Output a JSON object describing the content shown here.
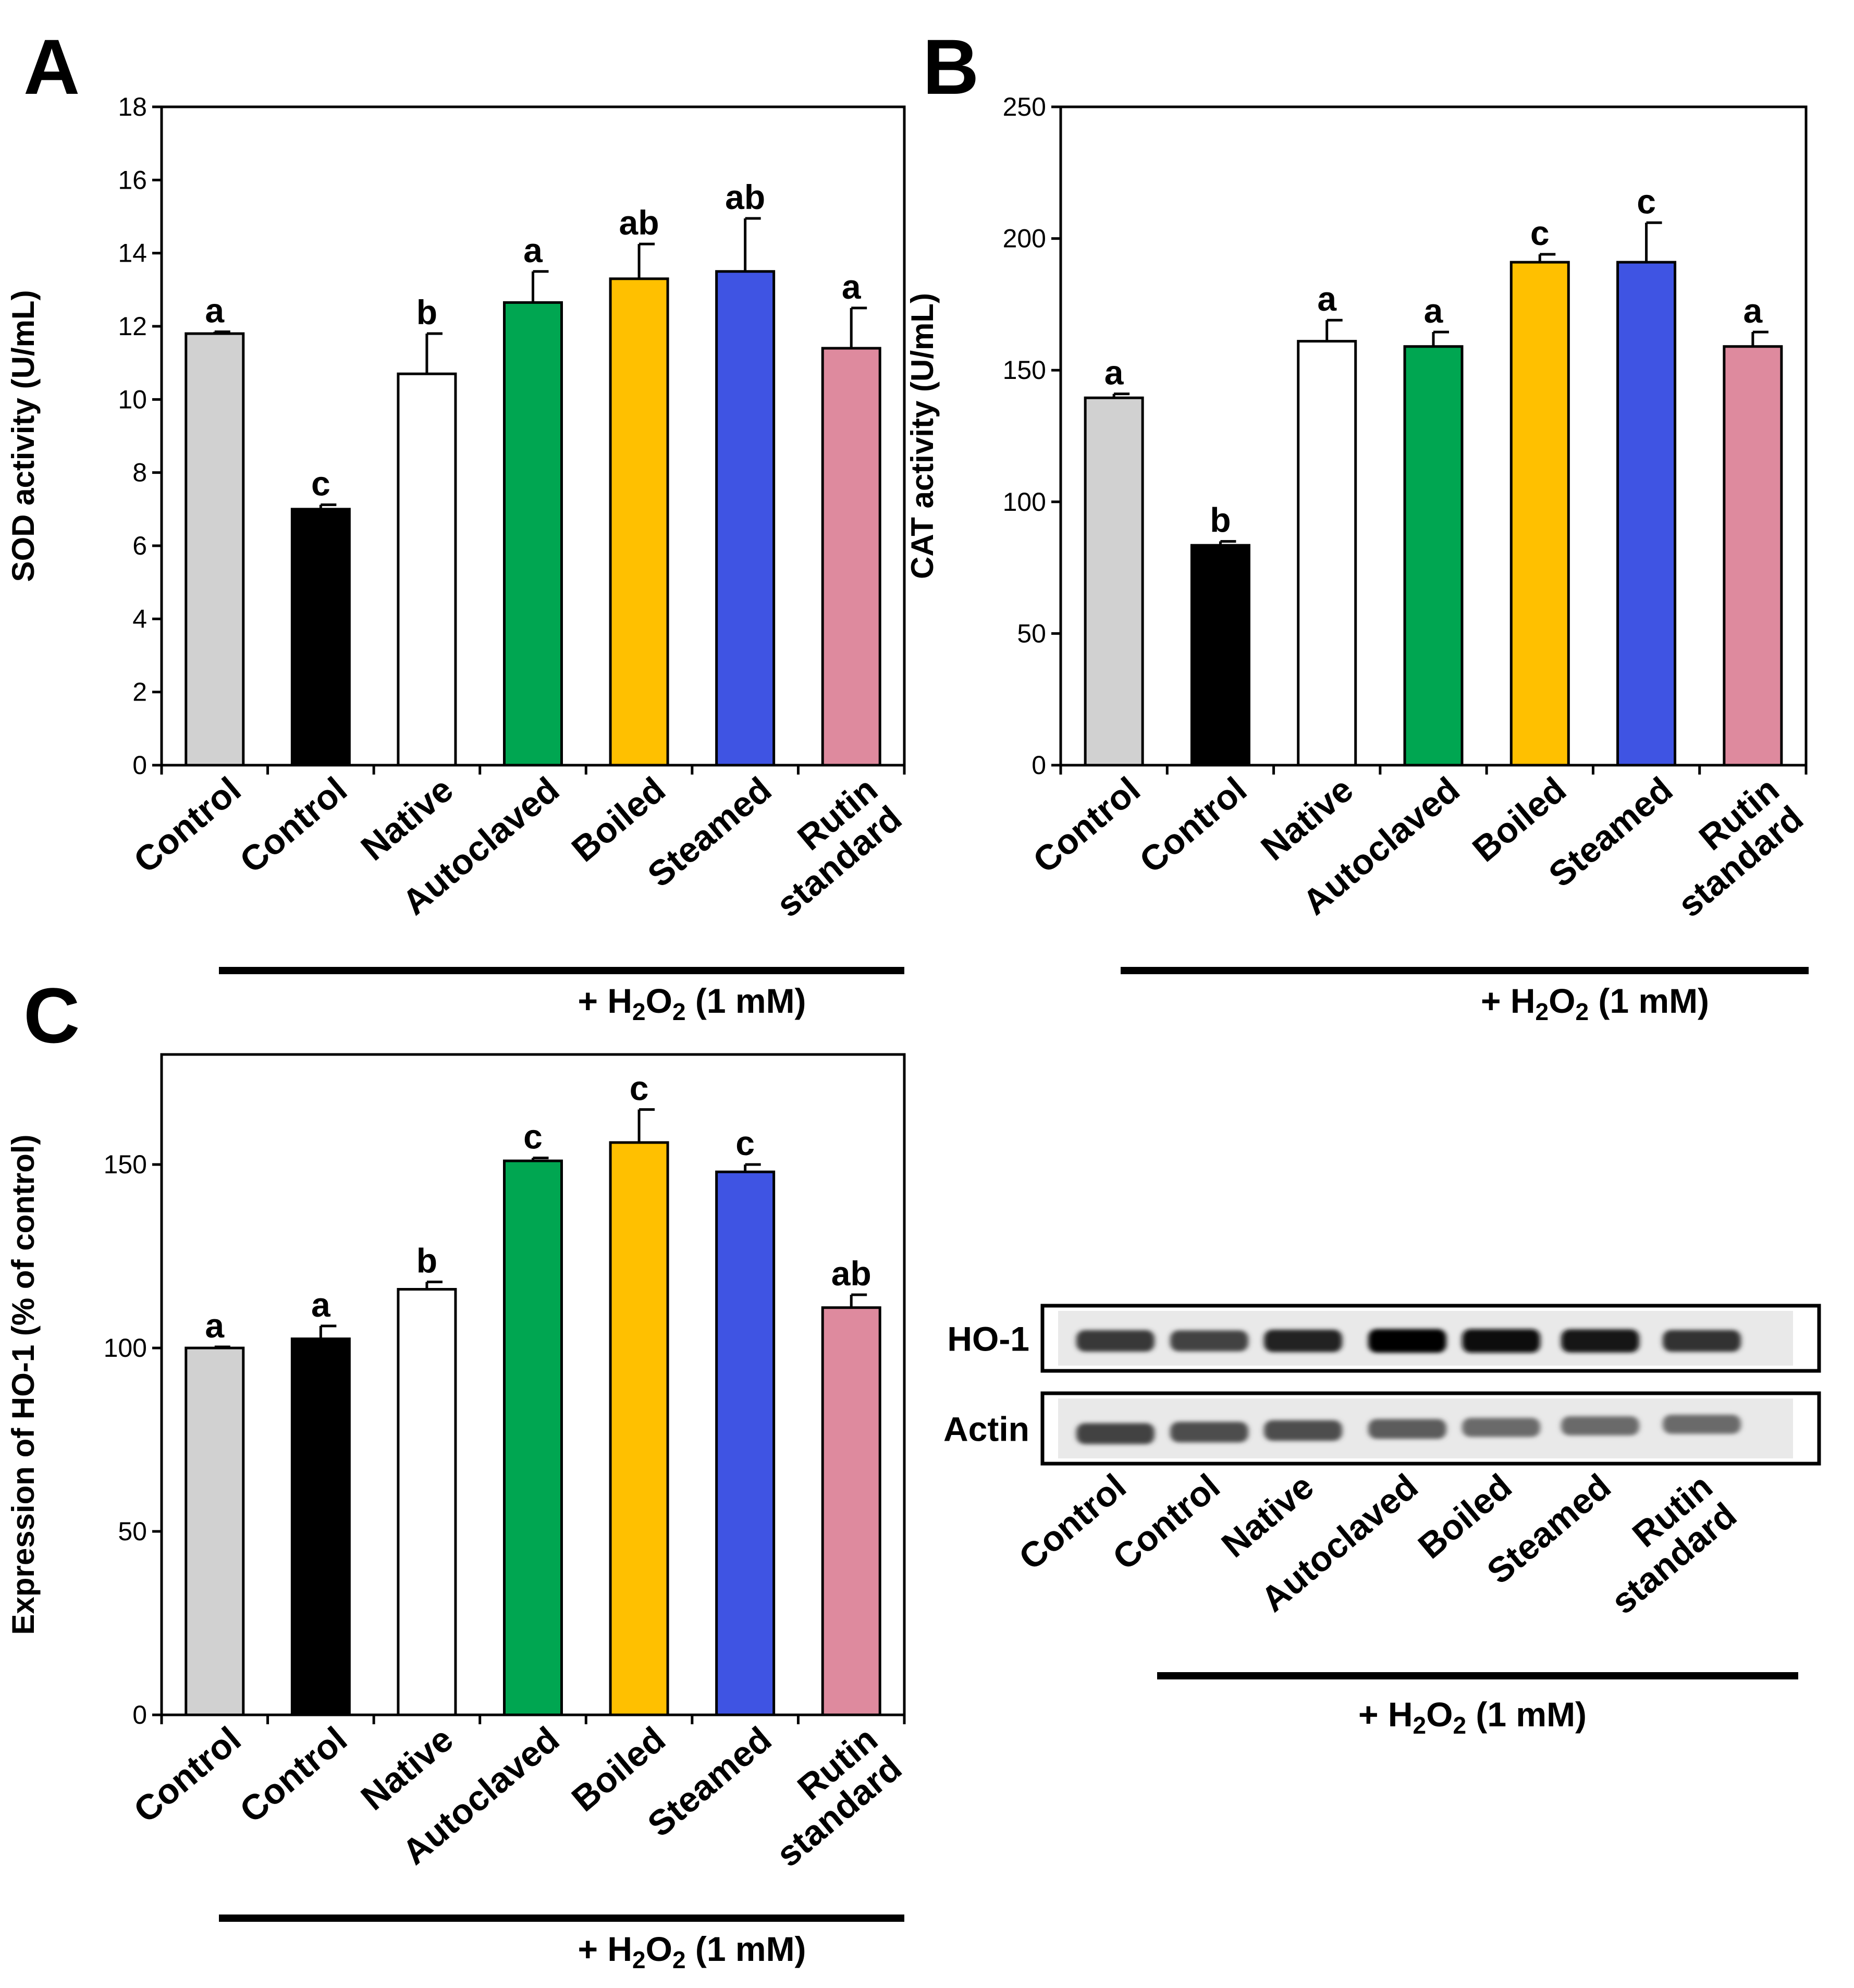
{
  "colors": [
    "#d1d1d1",
    "#000000",
    "#ffffff",
    "#00a651",
    "#ffc000",
    "#3f54e3",
    "#de8a9e"
  ],
  "chart_data": [
    {
      "panel": "A",
      "type": "bar",
      "ylabel": "SOD activity (U/mL)",
      "ylim": [
        0,
        18
      ],
      "yticks": [
        0,
        2,
        4,
        6,
        8,
        10,
        12,
        14,
        16,
        18
      ],
      "categories": [
        "Control",
        "Control",
        "Native",
        "Autoclaved",
        "Boiled",
        "Steamed",
        "Rutin standard"
      ],
      "category_lines": [
        [
          "Control"
        ],
        [
          "Control"
        ],
        [
          "Native"
        ],
        [
          "Autoclaved"
        ],
        [
          "Boiled"
        ],
        [
          "Steamed"
        ],
        [
          "Rutin",
          "standard"
        ]
      ],
      "values": [
        11.8,
        7.0,
        10.7,
        12.65,
        13.3,
        13.5,
        11.4
      ],
      "errors": [
        0.05,
        0.12,
        1.1,
        0.85,
        0.95,
        1.45,
        1.1
      ],
      "significance": [
        "a",
        "c",
        "b",
        "a",
        "ab",
        "ab",
        "a"
      ],
      "treatment_label": {
        "prefix": "+ H",
        "sub1": "2",
        "mid": "O",
        "sub2": "2",
        "suffix": " (1 mM)"
      }
    },
    {
      "panel": "B",
      "type": "bar",
      "ylabel": "CAT activity (U/mL)",
      "ylim": [
        0,
        250
      ],
      "yticks": [
        0,
        50,
        100,
        150,
        200,
        250
      ],
      "categories": [
        "Control",
        "Control",
        "Native",
        "Autoclaved",
        "Boiled",
        "Steamed",
        "Rutin standard"
      ],
      "category_lines": [
        [
          "Control"
        ],
        [
          "Control"
        ],
        [
          "Native"
        ],
        [
          "Autoclaved"
        ],
        [
          "Boiled"
        ],
        [
          "Steamed"
        ],
        [
          "Rutin",
          "standard"
        ]
      ],
      "values": [
        139.5,
        83.5,
        161.0,
        159.0,
        191.0,
        191.0,
        159.0
      ],
      "errors": [
        1.5,
        1.5,
        8.0,
        5.5,
        3.0,
        15.0,
        5.5
      ],
      "significance": [
        "a",
        "b",
        "a",
        "a",
        "c",
        "c",
        "a"
      ],
      "treatment_label": {
        "prefix": "+ H",
        "sub1": "2",
        "mid": "O",
        "sub2": "2",
        "suffix": " (1 mM)"
      }
    },
    {
      "panel": "C",
      "type": "bar",
      "ylabel": "Expression of HO-1 (% of control)",
      "ylim": [
        0,
        180
      ],
      "yticks": [
        0,
        50,
        100,
        150
      ],
      "categories": [
        "Control",
        "Control",
        "Native",
        "Autoclaved",
        "Boiled",
        "Steamed",
        "Rutin standard"
      ],
      "category_lines": [
        [
          "Control"
        ],
        [
          "Control"
        ],
        [
          "Native"
        ],
        [
          "Autoclaved"
        ],
        [
          "Boiled"
        ],
        [
          "Steamed"
        ],
        [
          "Rutin",
          "standard"
        ]
      ],
      "values": [
        100.0,
        102.5,
        116.0,
        151.0,
        156.0,
        148.0,
        111.0
      ],
      "errors": [
        0.3,
        3.5,
        2.0,
        0.8,
        9.0,
        2.0,
        3.5
      ],
      "significance": [
        "a",
        "a",
        "b",
        "c",
        "c",
        "c",
        "ab"
      ],
      "treatment_label": {
        "prefix": "+ H",
        "sub1": "2",
        "mid": "O",
        "sub2": "2",
        "suffix": " (1 mM)"
      }
    }
  ],
  "blot": {
    "rows": [
      "HO-1",
      "Actin"
    ],
    "intensity": [
      [
        0.78,
        0.74,
        0.86,
        0.98,
        0.97,
        0.93,
        0.81
      ],
      [
        0.74,
        0.7,
        0.7,
        0.64,
        0.58,
        0.58,
        0.58
      ]
    ],
    "categories": [
      "Control",
      "Control",
      "Native",
      "Autoclaved",
      "Boiled",
      "Steamed",
      "Rutin standard"
    ],
    "category_lines": [
      [
        "Control"
      ],
      [
        "Control"
      ],
      [
        "Native"
      ],
      [
        "Autoclaved"
      ],
      [
        "Boiled"
      ],
      [
        "Steamed"
      ],
      [
        "Rutin",
        "standard"
      ]
    ],
    "treatment_label": {
      "prefix": "+ H",
      "sub1": "2",
      "mid": "O",
      "sub2": "2",
      "suffix": " (1 mM)"
    }
  }
}
